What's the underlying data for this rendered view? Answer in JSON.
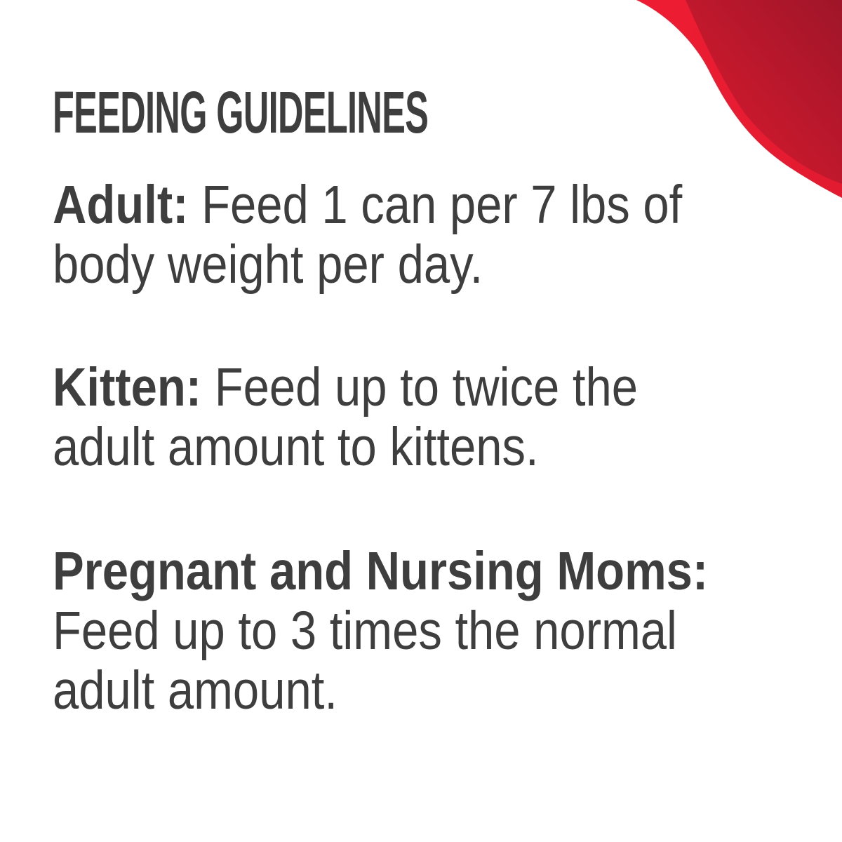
{
  "title": "FEEDING GUIDELINES",
  "colors": {
    "text": "#3e3e3e",
    "accent": "#e21b30",
    "accent_dark": "#a8182c"
  },
  "sections": [
    {
      "label": "Adult:",
      "lines": [
        " Feed 1 can per 7 lbs of",
        "body weight per day."
      ]
    },
    {
      "label": "Kitten:",
      "lines": [
        " Feed up to twice the",
        "adult amount to kittens."
      ]
    },
    {
      "label": "Pregnant and Nursing Moms:",
      "lines": [
        "Feed up to 3 times the normal",
        "adult amount."
      ]
    }
  ]
}
